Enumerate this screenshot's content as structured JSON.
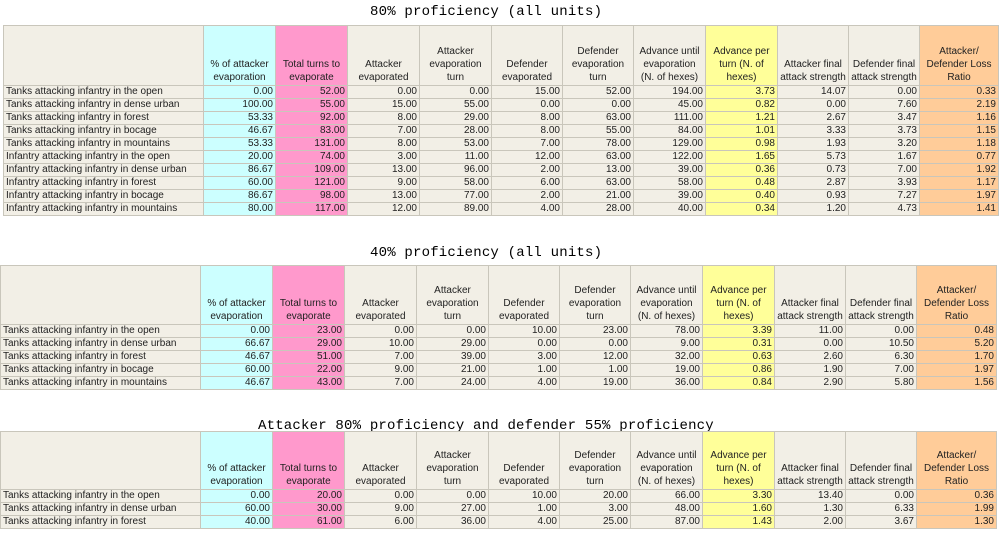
{
  "headers": [
    "",
    "% of attacker evaporation",
    "Total turns to evaporate",
    "Attacker evaporated",
    "Attacker evaporation turn",
    "Defender evaporated",
    "Defender evaporation turn",
    "Advance until evaporation (N. of hexes)",
    "Advance per turn (N. of hexes)",
    "Attacker final attack strength",
    "Defender final attack strength",
    "Attacker/ Defender Loss Ratio"
  ],
  "column_colors": {
    "cyan": "#ccffff",
    "pink": "#ff99cc",
    "yellow": "#ffff99",
    "orange": "#ffcc99",
    "sheet_background": "#f2efe6"
  },
  "tables": [
    {
      "title": "80% proficiency (all units)",
      "rows": [
        [
          "Tanks attacking infantry in the open",
          "0.00",
          "52.00",
          "0.00",
          "0.00",
          "15.00",
          "52.00",
          "194.00",
          "3.73",
          "14.07",
          "0.00",
          "0.33"
        ],
        [
          "Tanks attacking infantry in dense urban",
          "100.00",
          "55.00",
          "15.00",
          "55.00",
          "0.00",
          "0.00",
          "45.00",
          "0.82",
          "0.00",
          "7.60",
          "2.19"
        ],
        [
          "Tanks attacking infantry in forest",
          "53.33",
          "92.00",
          "8.00",
          "29.00",
          "8.00",
          "63.00",
          "111.00",
          "1.21",
          "2.67",
          "3.47",
          "1.16"
        ],
        [
          "Tanks attacking infantry in bocage",
          "46.67",
          "83.00",
          "7.00",
          "28.00",
          "8.00",
          "55.00",
          "84.00",
          "1.01",
          "3.33",
          "3.73",
          "1.15"
        ],
        [
          "Tanks attacking infantry in mountains",
          "53.33",
          "131.00",
          "8.00",
          "53.00",
          "7.00",
          "78.00",
          "129.00",
          "0.98",
          "1.93",
          "3.20",
          "1.18"
        ],
        [
          "Infantry attacking infantry in the open",
          "20.00",
          "74.00",
          "3.00",
          "11.00",
          "12.00",
          "63.00",
          "122.00",
          "1.65",
          "5.73",
          "1.67",
          "0.77"
        ],
        [
          "Infantry attacking infantry in dense urban",
          "86.67",
          "109.00",
          "13.00",
          "96.00",
          "2.00",
          "13.00",
          "39.00",
          "0.36",
          "0.73",
          "7.00",
          "1.92"
        ],
        [
          "Infantry attacking infantry in forest",
          "60.00",
          "121.00",
          "9.00",
          "58.00",
          "6.00",
          "63.00",
          "58.00",
          "0.48",
          "2.87",
          "3.93",
          "1.17"
        ],
        [
          "Infantry attacking infantry in bocage",
          "86.67",
          "98.00",
          "13.00",
          "77.00",
          "2.00",
          "21.00",
          "39.00",
          "0.40",
          "0.93",
          "7.27",
          "1.97"
        ],
        [
          "Infantry attacking infantry in mountains",
          "80.00",
          "117.00",
          "12.00",
          "89.00",
          "4.00",
          "28.00",
          "40.00",
          "0.34",
          "1.20",
          "4.73",
          "1.41"
        ]
      ]
    },
    {
      "title": "40% proficiency (all units)",
      "rows": [
        [
          "Tanks attacking infantry in the open",
          "0.00",
          "23.00",
          "0.00",
          "0.00",
          "10.00",
          "23.00",
          "78.00",
          "3.39",
          "11.00",
          "0.00",
          "0.48"
        ],
        [
          "Tanks attacking infantry in dense urban",
          "66.67",
          "29.00",
          "10.00",
          "29.00",
          "0.00",
          "0.00",
          "9.00",
          "0.31",
          "0.00",
          "10.50",
          "5.20"
        ],
        [
          "Tanks attacking infantry in forest",
          "46.67",
          "51.00",
          "7.00",
          "39.00",
          "3.00",
          "12.00",
          "32.00",
          "0.63",
          "2.60",
          "6.30",
          "1.70"
        ],
        [
          "Tanks attacking infantry in bocage",
          "60.00",
          "22.00",
          "9.00",
          "21.00",
          "1.00",
          "1.00",
          "19.00",
          "0.86",
          "1.90",
          "7.00",
          "1.97"
        ],
        [
          "Tanks attacking infantry in mountains",
          "46.67",
          "43.00",
          "7.00",
          "24.00",
          "4.00",
          "19.00",
          "36.00",
          "0.84",
          "2.90",
          "5.80",
          "1.56"
        ]
      ]
    },
    {
      "title": "Attacker 80% proficiency and defender 55% proficiency",
      "rows": [
        [
          "Tanks attacking infantry in the open",
          "0.00",
          "20.00",
          "0.00",
          "0.00",
          "10.00",
          "20.00",
          "66.00",
          "3.30",
          "13.40",
          "0.00",
          "0.36"
        ],
        [
          "Tanks attacking infantry in dense urban",
          "60.00",
          "30.00",
          "9.00",
          "27.00",
          "1.00",
          "3.00",
          "48.00",
          "1.60",
          "1.30",
          "6.33",
          "1.99"
        ],
        [
          "Tanks attacking infantry in forest",
          "40.00",
          "61.00",
          "6.00",
          "36.00",
          "4.00",
          "25.00",
          "87.00",
          "1.43",
          "2.00",
          "3.67",
          "1.30"
        ]
      ]
    }
  ]
}
